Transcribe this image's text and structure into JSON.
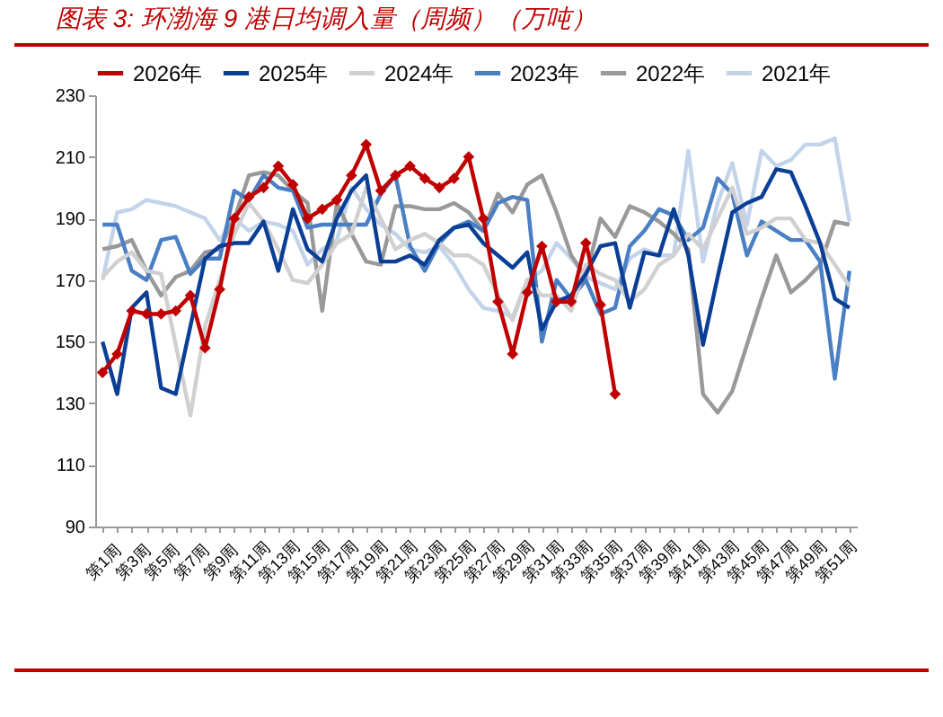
{
  "chart_data": {
    "type": "line",
    "title": "图表 3:  环渤海 9 港日均调入量（周频）（万吨）",
    "categories": [
      "第1周",
      null,
      "第3周",
      null,
      "第5周",
      null,
      "第7周",
      null,
      "第9周",
      null,
      "第11周",
      null,
      "第13周",
      null,
      "第15周",
      null,
      "第17周",
      null,
      "第19周",
      null,
      "第21周",
      null,
      "第23周",
      null,
      "第25周",
      null,
      "第27周",
      null,
      "第29周",
      null,
      "第31周",
      null,
      "第33周",
      null,
      "第35周",
      null,
      "第37周",
      null,
      "第39周",
      null,
      "第41周",
      null,
      "第43周",
      null,
      "第45周",
      null,
      "第47周",
      null,
      "第49周",
      null,
      "第51周",
      null
    ],
    "series": [
      {
        "name": "2026年",
        "color": "#c00000",
        "marker": "diamond",
        "values": [
          140,
          146,
          160,
          159,
          159,
          160,
          165,
          148,
          167,
          190,
          197,
          200,
          207,
          201,
          190,
          193,
          196,
          204,
          214,
          199,
          204,
          207,
          203,
          200,
          203,
          210,
          190,
          163,
          146,
          166,
          181,
          163,
          163,
          182,
          162,
          133,
          null,
          null,
          null,
          null,
          null,
          null,
          null,
          null,
          null,
          null,
          null,
          null,
          null,
          null,
          null,
          null
        ]
      },
      {
        "name": "2025年",
        "color": "#0b3f96",
        "values": [
          150,
          133,
          161,
          166,
          135,
          133,
          155,
          177,
          181,
          182,
          182,
          189,
          173,
          193,
          180,
          176,
          190,
          199,
          204,
          176,
          176,
          178,
          175,
          183,
          187,
          188,
          182,
          178,
          174,
          179,
          154,
          163,
          165,
          172,
          181,
          182,
          161,
          179,
          178,
          193,
          178,
          149,
          171,
          192,
          195,
          197,
          206,
          205,
          194,
          182,
          164,
          161
        ]
      },
      {
        "name": "2024年",
        "color": "#d0d0d0",
        "values": [
          171,
          176,
          179,
          173,
          172,
          149,
          126,
          155,
          170,
          185,
          195,
          189,
          180,
          170,
          169,
          175,
          182,
          185,
          200,
          190,
          180,
          183,
          185,
          182,
          178,
          178,
          175,
          165,
          157,
          170,
          165,
          165,
          160,
          175,
          172,
          170,
          163,
          167,
          175,
          178,
          185,
          180,
          190,
          200,
          185,
          187,
          190,
          190,
          183,
          182,
          175,
          168
        ]
      },
      {
        "name": "2023年",
        "color": "#4a7fc4",
        "values": [
          188,
          188,
          173,
          170,
          183,
          184,
          172,
          177,
          177,
          199,
          196,
          204,
          200,
          199,
          187,
          188,
          188,
          188,
          188,
          198,
          204,
          181,
          173,
          182,
          187,
          189,
          186,
          195,
          197,
          196,
          150,
          170,
          164,
          170,
          159,
          161,
          181,
          186,
          193,
          191,
          183,
          187,
          203,
          198,
          178,
          189,
          186,
          183,
          183,
          176,
          138,
          173
        ]
      },
      {
        "name": "2022年",
        "color": "#999999",
        "values": [
          180,
          181,
          183,
          173,
          165,
          171,
          173,
          179,
          180,
          190,
          204,
          205,
          204,
          199,
          195,
          160,
          195,
          185,
          176,
          175,
          194,
          194,
          193,
          193,
          195,
          192,
          186,
          198,
          192,
          201,
          204,
          192,
          178,
          171,
          190,
          184,
          194,
          192,
          189,
          185,
          180,
          133,
          127,
          134,
          149,
          164,
          178,
          166,
          170,
          175,
          189,
          188
        ]
      },
      {
        "name": "2021年",
        "color": "#c3d4ea",
        "values": [
          170,
          192,
          193,
          196,
          195,
          194,
          192,
          190,
          183,
          190,
          186,
          189,
          188,
          186,
          175,
          180,
          183,
          200,
          193,
          188,
          185,
          180,
          179,
          181,
          175,
          167,
          161,
          160,
          158,
          170,
          173,
          182,
          177,
          171,
          169,
          167,
          177,
          180,
          178,
          178,
          212,
          176,
          195,
          208,
          188,
          212,
          207,
          209,
          214,
          214,
          216,
          189
        ]
      }
    ],
    "ylim": [
      90,
      230
    ],
    "yticks": [
      90,
      110,
      130,
      150,
      170,
      190,
      210,
      230
    ],
    "grid": false,
    "legend": "top",
    "line_style": "solid"
  }
}
